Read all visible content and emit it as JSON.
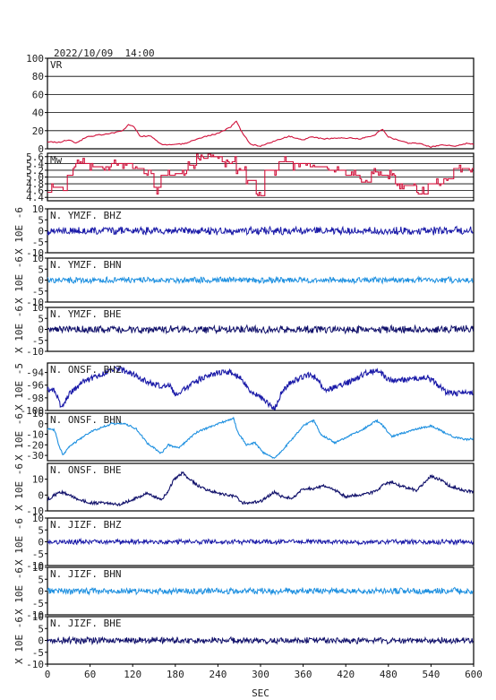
{
  "header": {
    "timestamp": "2022/10/09  14:00"
  },
  "colors": {
    "vr": "#d0103a",
    "dark_blue": "#1a1aa8",
    "light_blue": "#1e90e0",
    "navy": "#10106a",
    "axis": "#000000"
  },
  "chart_data": {
    "type": "line",
    "xlabel": "SEC",
    "xlim": [
      0,
      600
    ],
    "xticks": [
      "0",
      "60",
      "120",
      "180",
      "240",
      "300",
      "360",
      "420",
      "480",
      "540",
      "600"
    ],
    "panels": [
      {
        "label": "VR",
        "ylim": [
          0,
          100
        ],
        "yticks": [
          "100",
          "80",
          "60",
          "40",
          "20",
          "0"
        ],
        "grid": true,
        "color": "vr",
        "kind": "vr",
        "points": [
          [
            0,
            8
          ],
          [
            15,
            7
          ],
          [
            30,
            10
          ],
          [
            40,
            6
          ],
          [
            55,
            13
          ],
          [
            70,
            15
          ],
          [
            90,
            17
          ],
          [
            105,
            20
          ],
          [
            115,
            27
          ],
          [
            122,
            24
          ],
          [
            130,
            14
          ],
          [
            145,
            14
          ],
          [
            160,
            5
          ],
          [
            175,
            4
          ],
          [
            195,
            6
          ],
          [
            215,
            12
          ],
          [
            240,
            17
          ],
          [
            258,
            24
          ],
          [
            266,
            31
          ],
          [
            274,
            18
          ],
          [
            286,
            5
          ],
          [
            300,
            3
          ],
          [
            318,
            8
          ],
          [
            340,
            14
          ],
          [
            360,
            10
          ],
          [
            372,
            13
          ],
          [
            390,
            11
          ],
          [
            420,
            12
          ],
          [
            440,
            11
          ],
          [
            460,
            15
          ],
          [
            472,
            22
          ],
          [
            480,
            13
          ],
          [
            495,
            9
          ],
          [
            510,
            6
          ],
          [
            525,
            6
          ],
          [
            540,
            2
          ],
          [
            556,
            4
          ],
          [
            575,
            3
          ],
          [
            590,
            6
          ],
          [
            600,
            5
          ]
        ]
      },
      {
        "label": "Mw",
        "ylim": [
          4.3,
          5.7
        ],
        "yticks": [
          "5.6",
          "5.4",
          "5.2",
          "5.0",
          "4.8",
          "4.6",
          "4.4"
        ],
        "grid": true,
        "color": "vr",
        "kind": "step",
        "points": [
          [
            0,
            4.55
          ],
          [
            6,
            4.72
          ],
          [
            22,
            4.62
          ],
          [
            28,
            5.05
          ],
          [
            36,
            5.38
          ],
          [
            60,
            5.3
          ],
          [
            90,
            5.4
          ],
          [
            120,
            5.26
          ],
          [
            135,
            5.1
          ],
          [
            150,
            4.68
          ],
          [
            160,
            5.05
          ],
          [
            180,
            5.1
          ],
          [
            195,
            5.35
          ],
          [
            210,
            5.55
          ],
          [
            228,
            5.62
          ],
          [
            245,
            5.45
          ],
          [
            265,
            5.2
          ],
          [
            280,
            4.9
          ],
          [
            293,
            4.45
          ],
          [
            305,
            5.2
          ],
          [
            325,
            5.45
          ],
          [
            345,
            5.38
          ],
          [
            370,
            5.3
          ],
          [
            395,
            5.2
          ],
          [
            420,
            5.05
          ],
          [
            440,
            4.85
          ],
          [
            455,
            5.15
          ],
          [
            470,
            5.05
          ],
          [
            490,
            4.75
          ],
          [
            520,
            4.52
          ],
          [
            535,
            4.8
          ],
          [
            558,
            4.95
          ],
          [
            572,
            5.25
          ],
          [
            600,
            5.25
          ]
        ]
      },
      {
        "label": "N. YMZF. BHZ",
        "ylim": [
          -10,
          10
        ],
        "yticks": [
          "10",
          "5",
          "0",
          "-5",
          "-10"
        ],
        "grid": false,
        "color": "dark_blue",
        "kind": "noise",
        "amp": 1.6,
        "seed": 11,
        "ylabel": "X 10E -6"
      },
      {
        "label": "N. YMZF. BHN",
        "ylim": [
          -10,
          10
        ],
        "yticks": [
          "10",
          "5",
          "0",
          "-5",
          "-10"
        ],
        "grid": false,
        "color": "light_blue",
        "kind": "noise",
        "amp": 1.2,
        "seed": 23,
        "ylabel": "X 10E -6"
      },
      {
        "label": "N. YMZF. BHE",
        "ylim": [
          -10,
          10
        ],
        "yticks": [
          "10",
          "5",
          "0",
          "-5",
          "-10"
        ],
        "grid": false,
        "color": "navy",
        "kind": "noise",
        "amp": 1.5,
        "seed": 37,
        "ylabel": "X 10E -6"
      },
      {
        "label": "N. ONSF. BHZ",
        "ylim": [
          -100,
          -92.5
        ],
        "yticks": [
          "-94",
          "-96",
          "-98",
          "-100"
        ],
        "grid": false,
        "color": "dark_blue",
        "kind": "drift",
        "noise": 0.45,
        "seed": 41,
        "ylabel": "X 10E -5",
        "points": [
          [
            0,
            -96.5
          ],
          [
            10,
            -97
          ],
          [
            20,
            -99.5
          ],
          [
            30,
            -97.5
          ],
          [
            50,
            -95.5
          ],
          [
            80,
            -94.2
          ],
          [
            95,
            -93.3
          ],
          [
            120,
            -94.2
          ],
          [
            140,
            -95.5
          ],
          [
            160,
            -96.2
          ],
          [
            170,
            -95.8
          ],
          [
            180,
            -97.5
          ],
          [
            195,
            -96.5
          ],
          [
            215,
            -95
          ],
          [
            240,
            -94
          ],
          [
            260,
            -94
          ],
          [
            272,
            -95
          ],
          [
            285,
            -96.8
          ],
          [
            300,
            -98
          ],
          [
            320,
            -99.8
          ],
          [
            330,
            -97
          ],
          [
            345,
            -95.3
          ],
          [
            370,
            -94.3
          ],
          [
            380,
            -95
          ],
          [
            390,
            -96.8
          ],
          [
            410,
            -96.2
          ],
          [
            435,
            -95
          ],
          [
            450,
            -94
          ],
          [
            465,
            -93.8
          ],
          [
            480,
            -95
          ],
          [
            495,
            -95.3
          ],
          [
            515,
            -95
          ],
          [
            535,
            -94.8
          ],
          [
            545,
            -95.5
          ],
          [
            560,
            -97
          ],
          [
            575,
            -97.3
          ],
          [
            600,
            -97.2
          ]
        ]
      },
      {
        "label": "N. ONSF. BHN",
        "ylim": [
          -35,
          10
        ],
        "yticks": [
          "10",
          "0",
          "-10",
          "-20",
          "-30"
        ],
        "grid": false,
        "color": "light_blue",
        "kind": "drift",
        "noise": 0.9,
        "seed": 53,
        "ylabel": "X 10E -6",
        "points": [
          [
            0,
            -5
          ],
          [
            10,
            -6
          ],
          [
            16,
            -20
          ],
          [
            22,
            -30
          ],
          [
            30,
            -22
          ],
          [
            60,
            -8
          ],
          [
            90,
            0
          ],
          [
            110,
            0
          ],
          [
            125,
            -5
          ],
          [
            140,
            -18
          ],
          [
            160,
            -28
          ],
          [
            170,
            -20
          ],
          [
            185,
            -23
          ],
          [
            210,
            -8
          ],
          [
            240,
            0
          ],
          [
            262,
            5
          ],
          [
            268,
            -8
          ],
          [
            280,
            -20
          ],
          [
            292,
            -18
          ],
          [
            305,
            -28
          ],
          [
            320,
            -33
          ],
          [
            340,
            -18
          ],
          [
            360,
            -2
          ],
          [
            375,
            3
          ],
          [
            385,
            -10
          ],
          [
            405,
            -18
          ],
          [
            430,
            -10
          ],
          [
            450,
            -3
          ],
          [
            463,
            3
          ],
          [
            470,
            0
          ],
          [
            485,
            -12
          ],
          [
            505,
            -8
          ],
          [
            525,
            -4
          ],
          [
            540,
            -2
          ],
          [
            550,
            -5
          ],
          [
            570,
            -12
          ],
          [
            590,
            -15
          ],
          [
            600,
            -14
          ]
        ]
      },
      {
        "label": "N. ONSF. BHE",
        "ylim": [
          -10,
          20
        ],
        "yticks": [
          "10",
          "0",
          "-10"
        ],
        "grid": false,
        "color": "navy",
        "kind": "drift",
        "noise": 0.9,
        "seed": 67,
        "ylabel": "X 10E -6",
        "points": [
          [
            0,
            -3
          ],
          [
            10,
            0
          ],
          [
            20,
            2
          ],
          [
            40,
            -2
          ],
          [
            60,
            -5
          ],
          [
            80,
            -5
          ],
          [
            100,
            -6
          ],
          [
            120,
            -3
          ],
          [
            140,
            1
          ],
          [
            160,
            -3
          ],
          [
            170,
            2
          ],
          [
            178,
            10
          ],
          [
            190,
            14
          ],
          [
            200,
            10
          ],
          [
            215,
            5
          ],
          [
            240,
            1
          ],
          [
            265,
            -1
          ],
          [
            275,
            -5
          ],
          [
            300,
            -4
          ],
          [
            320,
            2
          ],
          [
            330,
            -1
          ],
          [
            345,
            -2
          ],
          [
            360,
            4
          ],
          [
            375,
            4
          ],
          [
            390,
            6
          ],
          [
            405,
            3
          ],
          [
            420,
            -1
          ],
          [
            440,
            0
          ],
          [
            460,
            2
          ],
          [
            475,
            7
          ],
          [
            485,
            8
          ],
          [
            495,
            6
          ],
          [
            520,
            3
          ],
          [
            540,
            12
          ],
          [
            552,
            10
          ],
          [
            565,
            6
          ],
          [
            585,
            3
          ],
          [
            600,
            2
          ]
        ]
      },
      {
        "label": "N. JIZF. BHZ",
        "ylim": [
          -10,
          10
        ],
        "yticks": [
          "10",
          "5",
          "0",
          "-5",
          "-10"
        ],
        "grid": false,
        "color": "dark_blue",
        "kind": "noise",
        "amp": 0.9,
        "seed": 79,
        "ylabel": "X 10E -6"
      },
      {
        "label": "N. JIZF. BHN",
        "ylim": [
          -10,
          10
        ],
        "yticks": [
          "10",
          "5",
          "0",
          "-5",
          "-10"
        ],
        "grid": false,
        "color": "light_blue",
        "kind": "noise",
        "amp": 1.2,
        "seed": 83,
        "ylabel": "X 10E -6"
      },
      {
        "label": "N. JIZF. BHE",
        "ylim": [
          -10,
          10
        ],
        "yticks": [
          "10",
          "5",
          "0",
          "-5",
          "-10"
        ],
        "grid": false,
        "color": "navy",
        "kind": "noise",
        "amp": 1.2,
        "seed": 97,
        "ylabel": "X 10E -6"
      }
    ]
  }
}
